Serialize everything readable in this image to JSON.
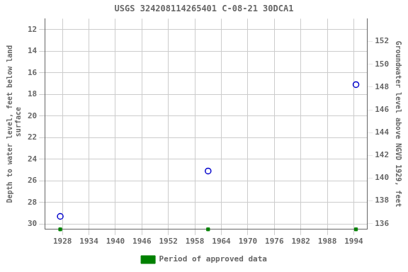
{
  "chart_data": {
    "type": "scatter",
    "title": "USGS 324208114265401 C-08-21 30DCA1",
    "y_label": "Depth to water level, feet below land\n surface",
    "y2_label": "Groundwater level above NGVD 1929, feet",
    "series": [
      {
        "color": "#0000cc",
        "marker": "open_circle",
        "x": [
          1927.5,
          1961.0,
          1994.5
        ],
        "values": [
          29.3,
          25.1,
          17.1
        ]
      },
      {
        "name": "Period of approved data",
        "color": "#008000",
        "marker": "square",
        "x": [
          1927.5,
          1961.0,
          1994.5
        ]
      }
    ],
    "xlim": [
      1924,
      1997
    ],
    "xticks": [
      1928,
      1934,
      1940,
      1946,
      1952,
      1958,
      1964,
      1970,
      1976,
      1982,
      1988,
      1994
    ],
    "ylim": [
      30.5,
      11.0
    ],
    "yticks": [
      12,
      14,
      16,
      18,
      20,
      22,
      24,
      26,
      28,
      30
    ],
    "y2lim": [
      135.5,
      154.0
    ],
    "y2ticks": [
      136,
      138,
      140,
      142,
      144,
      146,
      148,
      150,
      152
    ],
    "grid": true,
    "legend": "bottom"
  }
}
